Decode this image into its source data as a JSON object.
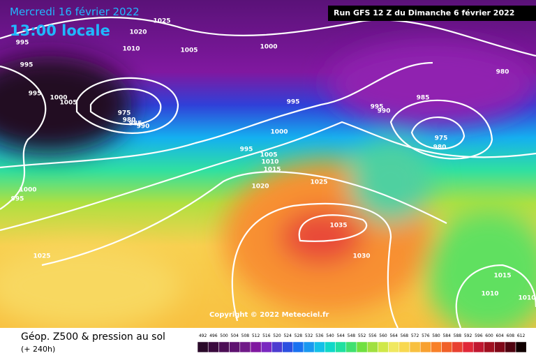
{
  "header": {
    "title": "Mercredi 16 février 2022",
    "local_time": "13:00 locale",
    "run": "Run GFS 12 Z du Dimanche 6 février 2022"
  },
  "map": {
    "copyright": "Copyright © 2022 Meteociel.fr",
    "isobar_labels": [
      1025,
      1020,
      1010,
      1005,
      1000,
      995,
      995,
      995,
      1000,
      1005,
      975,
      980,
      985,
      990,
      995,
      995,
      990,
      985,
      980,
      975,
      980,
      1000,
      995,
      1005,
      1010,
      1015,
      1020,
      1025,
      1035,
      1030,
      1025,
      1000,
      995,
      1015,
      1010,
      1010
    ]
  },
  "legend": {
    "title": "Géop. Z500 & pression au sol",
    "subtitle": "(+ 240h)",
    "ticks": [
      492,
      496,
      500,
      504,
      508,
      512,
      516,
      520,
      524,
      528,
      532,
      536,
      540,
      544,
      548,
      552,
      556,
      560,
      564,
      568,
      572,
      576,
      580,
      584,
      588,
      592,
      596,
      600,
      604,
      608,
      612
    ],
    "colors": [
      "#2a0a2a",
      "#3a0a3e",
      "#4c0e55",
      "#5e1270",
      "#701a88",
      "#8018a0",
      "#7a28c0",
      "#4c3cd0",
      "#2c50e0",
      "#1a72f0",
      "#1a98f0",
      "#14c0e8",
      "#10d8c8",
      "#20e0a0",
      "#40e070",
      "#70e040",
      "#a0e040",
      "#d0e848",
      "#f0e860",
      "#f8d850",
      "#f8c040",
      "#f8a030",
      "#f88028",
      "#f06028",
      "#e84030",
      "#e02838",
      "#c01830",
      "#a01020",
      "#800818",
      "#500410",
      "#100000"
    ]
  }
}
